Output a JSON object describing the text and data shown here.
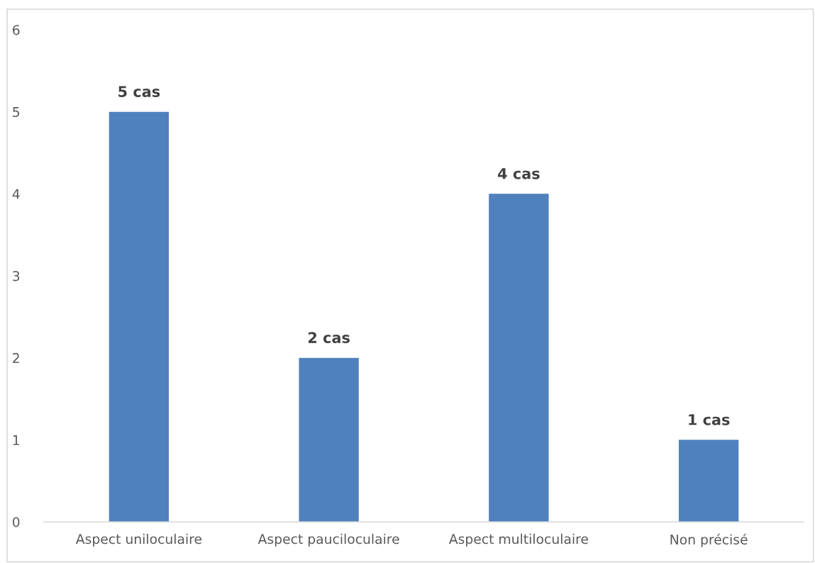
{
  "chart_data": {
    "type": "bar",
    "categories": [
      "Aspect uniloculaire",
      "Aspect pauciloculaire",
      "Aspect multiloculaire",
      "Non précisé"
    ],
    "values": [
      5,
      2,
      4,
      1
    ],
    "color": "#4f81bd",
    "value_labels": [
      "5 cas",
      "2 cas",
      "4 cas",
      "1 cas"
    ],
    "ylim": [
      0,
      6
    ],
    "yticks": [
      0,
      1,
      2,
      3,
      4,
      5,
      6
    ]
  }
}
